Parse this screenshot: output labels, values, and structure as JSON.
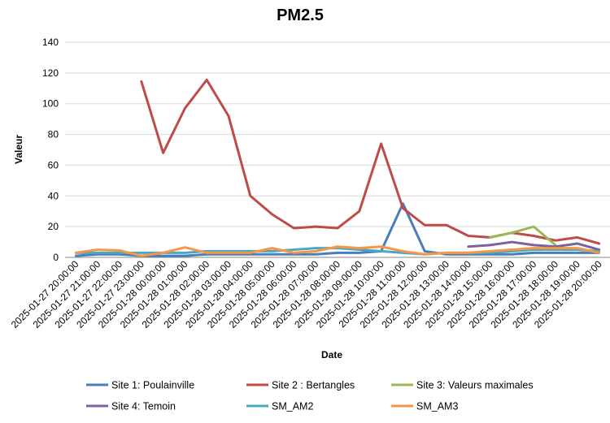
{
  "chart_data": {
    "type": "line",
    "title": "PM2.5",
    "xlabel": "Date",
    "ylabel": "Valeur",
    "ylim": [
      0,
      140
    ],
    "yticks": [
      0,
      20,
      40,
      60,
      80,
      100,
      120,
      140
    ],
    "grid": "horizontal",
    "legend_position": "bottom",
    "categories": [
      "2025-01-27 20:00:00",
      "2025-01-27 21:00:00",
      "2025-01-27 22:00:00",
      "2025-01-27 23:00:00",
      "2025-01-28 00:00:00",
      "2025-01-28 01:00:00",
      "2025-01-28 02:00:00",
      "2025-01-28 03:00:00",
      "2025-01-28 04:00:00",
      "2025-01-28 05:00:00",
      "2025-01-28 06:00:00",
      "2025-01-28 07:00:00",
      "2025-01-28 08:00:00",
      "2025-01-28 09:00:00",
      "2025-01-28 10:00:00",
      "2025-01-28 11:00:00",
      "2025-01-28 12:00:00",
      "2025-01-28 13:00:00",
      "2025-01-28 14:00:00",
      "2025-01-28 15:00:00",
      "2025-01-28 16:00:00",
      "2025-01-28 17:00:00",
      "2025-01-28 18:00:00",
      "2025-01-28 19:00:00",
      "2025-01-28 20:00:00"
    ],
    "series": [
      {
        "name": "Site 1: Poulainville",
        "color": "#4a7ebb",
        "values": [
          1,
          2,
          2,
          1,
          1,
          1,
          2,
          2,
          2,
          2,
          2,
          2,
          3,
          3,
          4,
          35,
          4,
          2,
          2,
          2,
          2,
          3,
          3,
          3,
          3
        ]
      },
      {
        "name": "Site 2 : Bertangles",
        "color": "#be4b48",
        "values": [
          null,
          null,
          null,
          114.5,
          68,
          97,
          115.5,
          92,
          40,
          28,
          19,
          20,
          19,
          30,
          74,
          32,
          21,
          21,
          14,
          13,
          16,
          14,
          11,
          13,
          9
        ]
      },
      {
        "name": "Site 3: Valeurs maximales",
        "color": "#98b954",
        "values": [
          null,
          null,
          null,
          null,
          null,
          null,
          null,
          null,
          null,
          null,
          null,
          null,
          null,
          null,
          null,
          null,
          null,
          null,
          null,
          13,
          16,
          20,
          8,
          null,
          null
        ]
      },
      {
        "name": "Site 4: Temoin",
        "color": "#7d60a0",
        "values": [
          null,
          null,
          null,
          null,
          null,
          null,
          null,
          null,
          null,
          null,
          null,
          null,
          null,
          null,
          null,
          null,
          null,
          null,
          7,
          8,
          10,
          8,
          7,
          9,
          5
        ]
      },
      {
        "name": "SM_AM2",
        "color": "#46aac5",
        "values": [
          3,
          3,
          3,
          3,
          3,
          3,
          4,
          4,
          4,
          4,
          5,
          6,
          6,
          5,
          4,
          3,
          2,
          3,
          3,
          3,
          4,
          5,
          5,
          5,
          4
        ]
      },
      {
        "name": "SM_AM3",
        "color": "#f79646",
        "values": [
          3,
          5,
          4.5,
          1,
          3,
          6.5,
          3,
          3,
          3,
          6,
          3,
          4,
          7,
          6,
          7,
          4,
          2,
          3,
          3,
          4,
          5,
          6,
          6,
          6,
          3
        ]
      }
    ]
  }
}
